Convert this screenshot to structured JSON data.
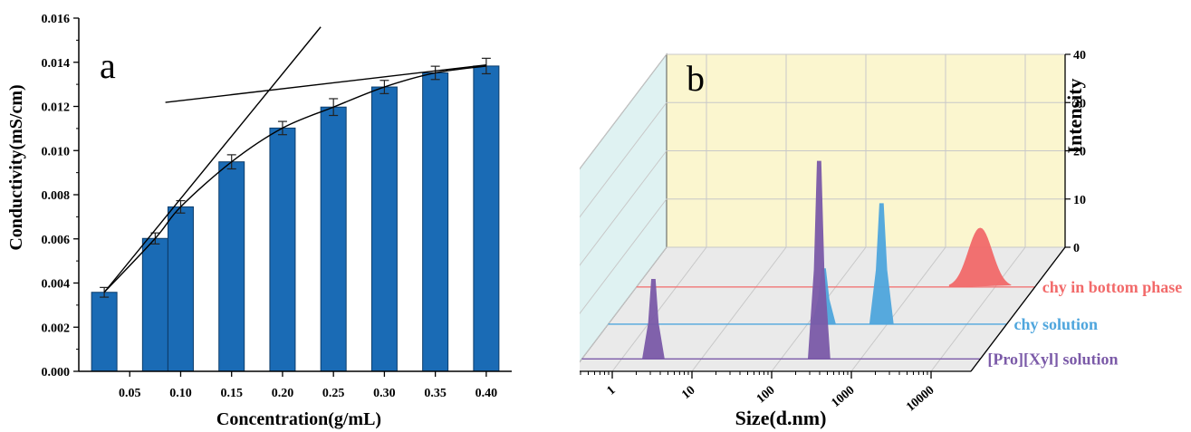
{
  "chart_data": [
    {
      "type": "bar",
      "panel_label": "a",
      "xlabel": "Concentration(g/mL)",
      "ylabel": "Conductivity(mS/cm)",
      "ylim": [
        0,
        0.016
      ],
      "yticks": [
        "0.000",
        "0.002",
        "0.004",
        "0.006",
        "0.008",
        "0.010",
        "0.012",
        "0.014",
        "0.016"
      ],
      "xticks": [
        "0.05",
        "0.10",
        "0.15",
        "0.20",
        "0.25",
        "0.30",
        "0.35",
        "0.40"
      ],
      "bar_color": "#1a6bb5",
      "x": [
        0.025,
        0.075,
        0.1,
        0.15,
        0.2,
        0.25,
        0.3,
        0.35,
        0.4
      ],
      "values": [
        0.00358,
        0.00602,
        0.00745,
        0.00949,
        0.01102,
        0.01197,
        0.01288,
        0.01352,
        0.01383
      ],
      "errors": [
        0.00022,
        0.00025,
        0.00028,
        0.00032,
        0.0003,
        0.00038,
        0.0003,
        0.0003,
        0.00035
      ],
      "fit_lines": [
        {
          "x": [
            0.025,
            0.2375
          ],
          "y": [
            0.00358,
            0.0156
          ]
        },
        {
          "x": [
            0.085,
            0.4
          ],
          "y": [
            0.01218,
            0.01388
          ]
        }
      ],
      "trend_curve": {
        "x": [
          0.025,
          0.075,
          0.1,
          0.15,
          0.2,
          0.25,
          0.3,
          0.35,
          0.4
        ],
        "y": [
          0.00358,
          0.00602,
          0.00745,
          0.00949,
          0.01102,
          0.01197,
          0.01288,
          0.01352,
          0.01383
        ]
      }
    },
    {
      "type": "area",
      "panel_label": "b",
      "xlabel": "Size(d.nm)",
      "zlabel": "Intensity",
      "x_scale": "log",
      "xticks": [
        "1",
        "10",
        "100",
        "1000",
        "10000"
      ],
      "zticks": [
        "0",
        "10",
        "20",
        "30",
        "40"
      ],
      "zlim": [
        0,
        40
      ],
      "series": [
        {
          "name": "chy in bottom phase",
          "color": "#f26a6a",
          "peaks": [
            {
              "center": 6500,
              "intensity": 12.2
            }
          ]
        },
        {
          "name": "chy solution",
          "color": "#4fa6dd",
          "peaks": [
            {
              "center": 160,
              "intensity": 11.5
            },
            {
              "center": 850,
              "intensity": 25
            }
          ]
        },
        {
          "name": "[Pro][Xyl] solution",
          "color": "#7b5aa8",
          "peaks": [
            {
              "center": 2.5,
              "intensity": 16.5
            },
            {
              "center": 300,
              "intensity": 41
            }
          ]
        }
      ]
    }
  ]
}
